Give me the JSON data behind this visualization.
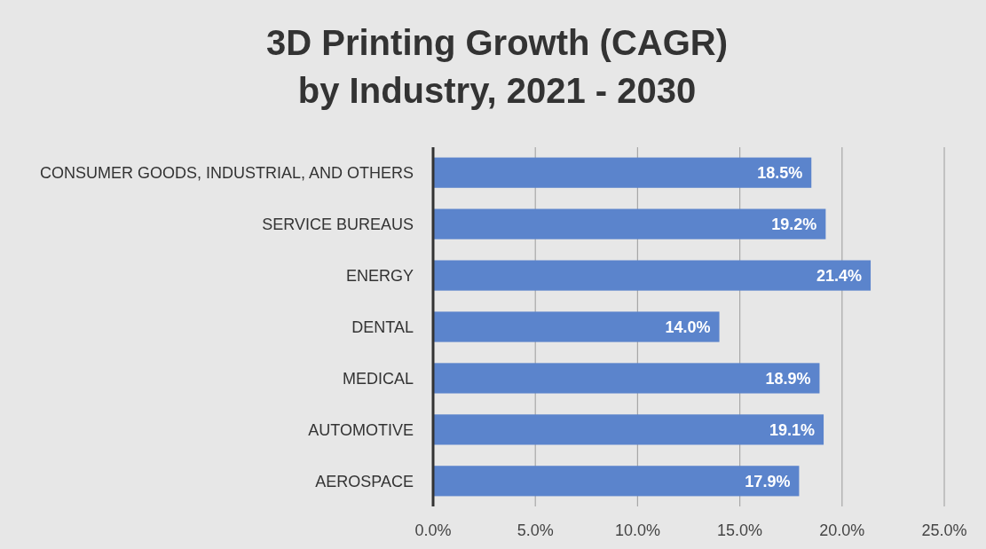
{
  "chart_data": {
    "type": "bar",
    "orientation": "horizontal",
    "title": "3D Printing Growth (CAGR)\nby Industry, 2021 - 2030",
    "categories": [
      "CONSUMER GOODS, INDUSTRIAL, AND OTHERS",
      "SERVICE BUREAUS",
      "ENERGY",
      "DENTAL",
      "MEDICAL",
      "AUTOMOTIVE",
      "AEROSPACE"
    ],
    "values": [
      18.5,
      19.2,
      21.4,
      14.0,
      18.9,
      19.1,
      17.9
    ],
    "value_labels": [
      "18.5%",
      "19.2%",
      "21.4%",
      "14.0%",
      "18.9%",
      "19.1%",
      "17.9%"
    ],
    "color": "#5b84cc",
    "xlim": [
      0,
      25
    ],
    "xticks": [
      {
        "value": 0,
        "label": "0.0%"
      },
      {
        "value": 5,
        "label": "5.0%"
      },
      {
        "value": 10,
        "label": "10.0%"
      },
      {
        "value": 15,
        "label": "15.0%"
      },
      {
        "value": 20,
        "label": "20.0%"
      },
      {
        "value": 25,
        "label": "25.0%"
      }
    ],
    "grid": "x"
  }
}
